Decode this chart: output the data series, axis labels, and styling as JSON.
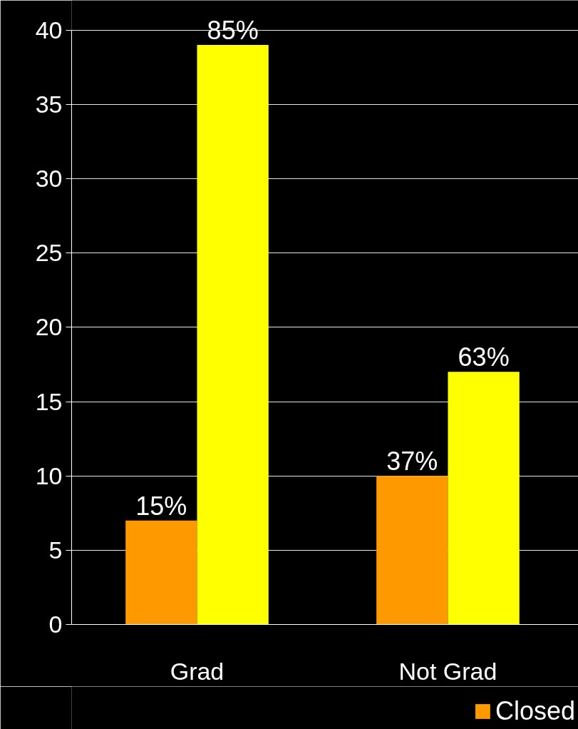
{
  "chart_data": {
    "type": "bar",
    "categories": [
      "Grad",
      "Not Grad"
    ],
    "series": [
      {
        "name": "Closed",
        "color": "#ff9900",
        "values": [
          7,
          10
        ]
      },
      {
        "color": "#ffff00",
        "values": [
          39,
          17
        ]
      }
    ],
    "annotations": [
      {
        "text": "15%",
        "x": "Grad",
        "y": 7
      },
      {
        "text": "85%",
        "x": "Grad",
        "y": 39
      },
      {
        "text": "37%",
        "x": "Not Grad",
        "y": 10
      },
      {
        "text": "63%",
        "x": "Not Grad",
        "y": 17
      }
    ],
    "ylim": [
      0,
      40
    ],
    "yticks": [
      0,
      5,
      10,
      15,
      20,
      25,
      30,
      35,
      40
    ],
    "grid": "y",
    "legend": "bottom right"
  }
}
